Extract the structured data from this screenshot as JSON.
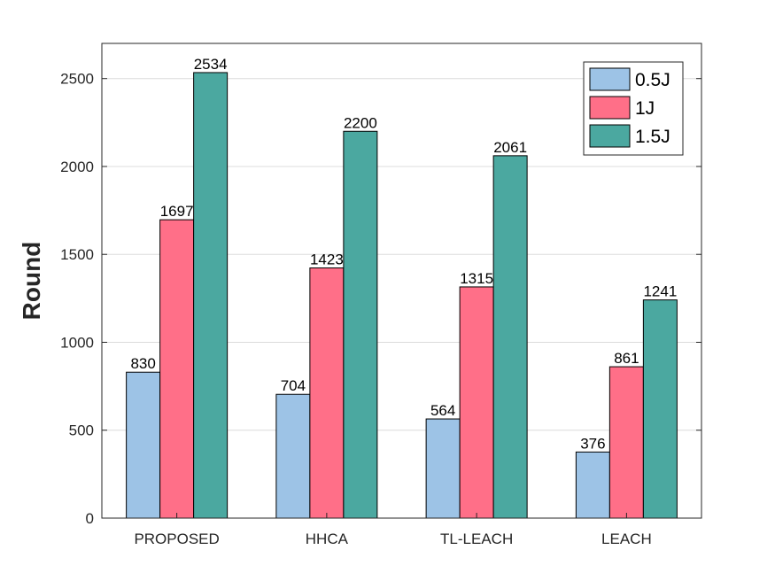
{
  "chart_data": {
    "type": "bar",
    "title": "",
    "xlabel": "",
    "ylabel": "Round",
    "categories": [
      "PROPOSED",
      "HHCA",
      "TL-LEACH",
      "LEACH"
    ],
    "series": [
      {
        "name": "0.5J",
        "color": "#9DC3E6",
        "values": [
          830,
          704,
          564,
          376
        ]
      },
      {
        "name": "1J",
        "color": "#FF6F88",
        "values": [
          1697,
          1423,
          1315,
          861
        ]
      },
      {
        "name": "1.5J",
        "color": "#4BA8A0",
        "values": [
          2534,
          2200,
          2061,
          1241
        ]
      }
    ],
    "ylim": [
      0,
      2700
    ],
    "yticks": [
      0,
      500,
      1000,
      1500,
      2000,
      2500
    ],
    "grid": true,
    "legend_position": "top-right"
  }
}
